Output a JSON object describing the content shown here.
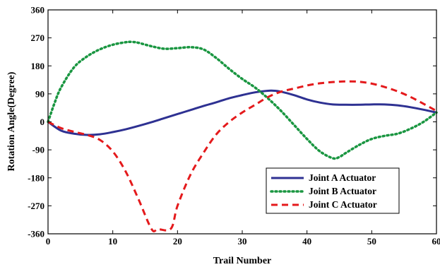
{
  "chart_data": {
    "type": "line",
    "title": "",
    "xlabel": "Trail Number",
    "ylabel": "Rotation Angle(Degree)",
    "xlim": [
      0,
      60
    ],
    "ylim": [
      -360,
      360
    ],
    "xticks": [
      0,
      10,
      20,
      30,
      40,
      50,
      60
    ],
    "yticks": [
      360,
      270,
      180,
      90,
      0,
      -90,
      -180,
      -270,
      -360
    ],
    "xtick_labels": [
      "0",
      "10",
      "20",
      "30",
      "40",
      "50",
      "60"
    ],
    "ytick_labels": [
      "360",
      "270",
      "180",
      "90",
      "0",
      "-90",
      "-180",
      "-270",
      "-360"
    ],
    "grid": false,
    "legend_position": "bottom-right",
    "series": [
      {
        "name": "Joint A Actuator",
        "color": "#2e3192",
        "style": "solid",
        "x": [
          0,
          2,
          4,
          6,
          8,
          10,
          12,
          14,
          16,
          18,
          20,
          22,
          24,
          26,
          28,
          30,
          32,
          34,
          35,
          36,
          38,
          40,
          42,
          44,
          46,
          48,
          50,
          52,
          54,
          56,
          58,
          60
        ],
        "y": [
          0,
          -28,
          -38,
          -42,
          -40,
          -33,
          -24,
          -13,
          -1,
          12,
          25,
          38,
          51,
          63,
          76,
          86,
          95,
          100,
          100,
          97,
          86,
          72,
          62,
          56,
          55,
          55,
          56,
          56,
          53,
          47,
          39,
          30
        ]
      },
      {
        "name": "Joint B Actuator",
        "color": "#1a9641",
        "style": "dotted",
        "x": [
          0,
          1,
          2,
          4,
          6,
          8,
          10,
          12,
          13,
          14,
          16,
          18,
          20,
          22,
          24,
          26,
          28,
          30,
          32,
          34,
          36,
          38,
          40,
          42,
          44,
          45,
          46,
          48,
          50,
          52,
          54,
          56,
          58,
          60
        ],
        "y": [
          0,
          60,
          110,
          175,
          210,
          233,
          248,
          256,
          257,
          254,
          243,
          235,
          237,
          240,
          233,
          205,
          170,
          138,
          110,
          75,
          35,
          -10,
          -55,
          -95,
          -117,
          -113,
          -100,
          -75,
          -55,
          -45,
          -38,
          -22,
          0,
          30
        ]
      },
      {
        "name": "Joint C Actuator",
        "color": "#e41a1c",
        "style": "dashed",
        "x": [
          0,
          2,
          4,
          6,
          8,
          10,
          12,
          14,
          16,
          17,
          19,
          20,
          22,
          24,
          26,
          28,
          30,
          32,
          34,
          36,
          38,
          40,
          42,
          44,
          46,
          48,
          50,
          52,
          54,
          56,
          58,
          60
        ],
        "y": [
          0,
          -20,
          -32,
          -42,
          -58,
          -95,
          -160,
          -250,
          -345,
          -345,
          -343,
          -270,
          -170,
          -100,
          -40,
          0,
          30,
          55,
          80,
          97,
          107,
          117,
          124,
          128,
          130,
          129,
          123,
          112,
          98,
          80,
          58,
          35
        ]
      }
    ]
  }
}
